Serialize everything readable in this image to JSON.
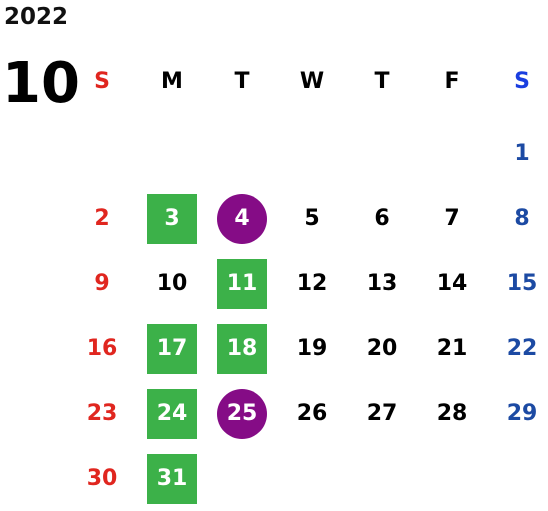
{
  "year": "2022",
  "month": "10",
  "weekdays": [
    {
      "label": "S",
      "kind": "sun"
    },
    {
      "label": "M",
      "kind": "wk"
    },
    {
      "label": "T",
      "kind": "wk"
    },
    {
      "label": "W",
      "kind": "wk"
    },
    {
      "label": "T",
      "kind": "wk"
    },
    {
      "label": "F",
      "kind": "wk"
    },
    {
      "label": "S",
      "kind": "sat"
    }
  ],
  "first_weekday_index": 6,
  "days_in_month": 31,
  "highlights": {
    "box": [
      "3",
      "11",
      "17",
      "18",
      "24",
      "31"
    ],
    "circle": [
      "4",
      "25"
    ]
  },
  "colors": {
    "sunday": "#e0261f",
    "saturday": "#1c4aa3",
    "weekday": "#000000",
    "box": "#3cb149",
    "circle": "#850c86"
  }
}
